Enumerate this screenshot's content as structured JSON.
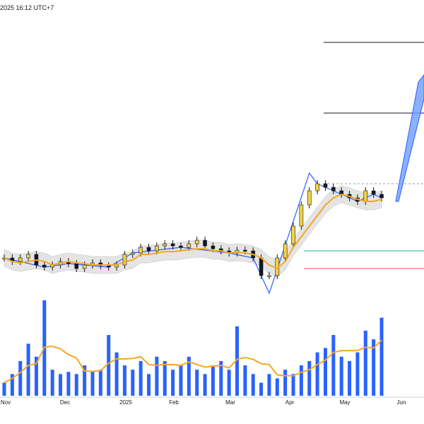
{
  "header": {
    "timestamp": "2025 16:12 UTC+7"
  },
  "colors": {
    "candle_up": "#f3d24a",
    "candle_down": "#131722",
    "ma_line": "#f5a623",
    "zigzag": "#2962ff",
    "volume": "#2962ff",
    "band_fill": "#d9d9d9",
    "support_green": "#26a69a",
    "support_red": "#ef5350",
    "resistance": "#131722",
    "projection": "#6e9cff"
  },
  "chart_data": [
    {
      "type": "candlestick",
      "x_axis": {
        "ticks": [
          "Nov",
          "Dec",
          "2025",
          "Feb",
          "Mar",
          "Apr",
          "May",
          "Jun"
        ]
      },
      "price_levels": {
        "resistance_upper": 10.6,
        "resistance_mid": 9.6,
        "top_dashed": 8.6,
        "support_green": 7.65,
        "support_red": 7.4
      },
      "projection_target": 10.1,
      "close_ma": [
        7.55,
        7.5,
        7.48,
        7.5,
        7.52,
        7.5,
        7.45,
        7.48,
        7.5,
        7.48,
        7.47,
        7.45,
        7.45,
        7.45,
        7.45,
        7.5,
        7.52,
        7.6,
        7.6,
        7.62,
        7.64,
        7.64,
        7.65,
        7.67,
        7.68,
        7.68,
        7.65,
        7.65,
        7.62,
        7.63,
        7.62,
        7.6,
        7.55,
        7.45,
        7.4,
        7.5,
        7.7,
        7.85,
        8.0,
        8.15,
        8.3,
        8.4,
        8.45,
        8.42,
        8.38,
        8.35,
        8.35,
        8.38
      ],
      "closes": [
        7.55,
        7.5,
        7.55,
        7.6,
        7.45,
        7.42,
        7.45,
        7.5,
        7.47,
        7.4,
        7.45,
        7.48,
        7.44,
        7.42,
        7.45,
        7.6,
        7.62,
        7.7,
        7.65,
        7.72,
        7.75,
        7.72,
        7.7,
        7.75,
        7.8,
        7.72,
        7.68,
        7.65,
        7.62,
        7.66,
        7.65,
        7.55,
        7.3,
        7.3,
        7.55,
        7.75,
        8.0,
        8.3,
        8.5,
        8.6,
        8.55,
        8.5,
        8.45,
        8.4,
        8.35,
        8.5,
        8.45,
        8.4
      ],
      "volumes": [
        0.3,
        0.5,
        0.8,
        1.2,
        0.9,
        2.2,
        0.6,
        0.5,
        0.55,
        0.5,
        0.7,
        0.55,
        0.6,
        1.4,
        1.0,
        0.7,
        0.6,
        0.8,
        0.5,
        0.9,
        0.8,
        0.6,
        0.7,
        0.9,
        0.6,
        0.5,
        0.7,
        0.8,
        0.6,
        1.6,
        0.7,
        0.5,
        0.3,
        0.5,
        0.4,
        0.6,
        0.5,
        0.7,
        0.8,
        1.0,
        1.1,
        1.4,
        0.9,
        0.8,
        1.0,
        1.5,
        1.3,
        1.8
      ]
    }
  ]
}
